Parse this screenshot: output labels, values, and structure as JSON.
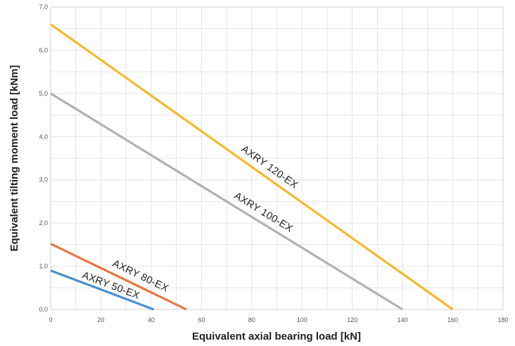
{
  "chart_data": {
    "type": "line",
    "title": "",
    "xlabel": "Equivalent axial bearing load [kN]",
    "ylabel": "Equivalent tilting moment load [kNm]",
    "xlim": [
      0,
      180
    ],
    "ylim": [
      0,
      7
    ],
    "x_ticks": [
      0,
      20,
      40,
      60,
      80,
      100,
      120,
      140,
      160,
      180
    ],
    "y_ticks": [
      "0,0",
      "1,0",
      "2,0",
      "3,0",
      "4,0",
      "5,0",
      "6,0",
      "7,0"
    ],
    "grid": true,
    "series": [
      {
        "name": "AXRY 120-EX",
        "color": "#f6b82c",
        "x": [
          0,
          160
        ],
        "y": [
          6.6,
          0
        ]
      },
      {
        "name": "AXRY 100-EX",
        "color": "#b1b1b3",
        "x": [
          0,
          140
        ],
        "y": [
          5.0,
          0
        ]
      },
      {
        "name": "AXRY 80-EX",
        "color": "#e8773f",
        "x": [
          0,
          54
        ],
        "y": [
          1.52,
          0
        ]
      },
      {
        "name": "AXRY 50-EX",
        "color": "#4a8fce",
        "x": [
          0,
          41
        ],
        "y": [
          0.9,
          0
        ]
      }
    ]
  }
}
